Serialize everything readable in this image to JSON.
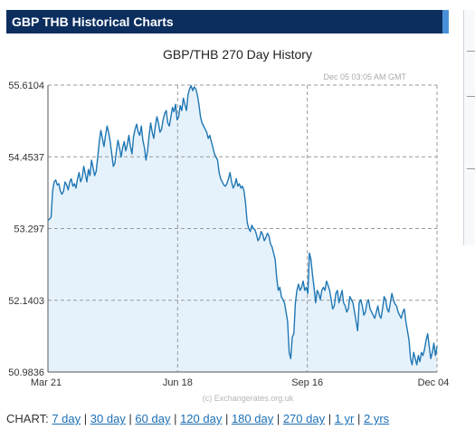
{
  "header": {
    "title": "GBP THB Historical Charts"
  },
  "chart_data": {
    "type": "area",
    "title": "GBP/THB  270 Day History",
    "timestamp": "Dec 05  03:05 AM GMT",
    "credit": "(c) Exchangerates.org.uk",
    "x_tick_labels": [
      "Mar 21",
      "Jun 18",
      "Sep 16",
      "Dec 04"
    ],
    "y_tick_labels": [
      "55.6104",
      "54.4537",
      "53.297",
      "52.1403",
      "50.9836"
    ],
    "ylim": [
      50.9836,
      55.6104
    ],
    "grid": true,
    "line_color": "#1f77b4",
    "fill_color": "#e6f2fb",
    "n_days": 270,
    "values": [
      53.43,
      53.45,
      53.48,
      53.9,
      54.05,
      54.08,
      54.0,
      54.02,
      53.9,
      53.85,
      53.9,
      54.05,
      54.0,
      53.92,
      54.05,
      54.1,
      53.98,
      54.02,
      53.95,
      54.1,
      54.2,
      54.05,
      54.12,
      54.3,
      54.18,
      54.05,
      54.25,
      54.15,
      54.4,
      54.28,
      54.15,
      54.22,
      54.45,
      54.7,
      54.88,
      54.75,
      54.62,
      54.8,
      54.95,
      54.85,
      54.7,
      54.5,
      54.3,
      54.35,
      54.55,
      54.72,
      54.6,
      54.45,
      54.6,
      54.7,
      54.55,
      54.65,
      54.8,
      54.62,
      54.5,
      54.78,
      54.9,
      54.98,
      54.85,
      54.8,
      54.95,
      54.72,
      54.6,
      54.4,
      54.55,
      54.8,
      55.0,
      54.85,
      54.75,
      54.95,
      55.1,
      55.0,
      54.85,
      54.9,
      55.05,
      55.15,
      55.2,
      55.0,
      54.95,
      55.1,
      55.25,
      55.18,
      55.3,
      55.05,
      55.1,
      55.28,
      55.2,
      55.4,
      55.3,
      55.2,
      55.45,
      55.55,
      55.6,
      55.52,
      55.58,
      55.55,
      55.45,
      55.3,
      55.1,
      55.0,
      54.95,
      54.9,
      54.85,
      54.75,
      54.8,
      54.7,
      54.6,
      54.5,
      54.45,
      54.4,
      54.2,
      54.1,
      54.05,
      54.0,
      53.98,
      54.02,
      54.1,
      54.2,
      54.05,
      53.95,
      54.0,
      54.1,
      53.98,
      54.02,
      53.95,
      53.98,
      53.9,
      53.7,
      53.4,
      53.3,
      53.25,
      53.35,
      53.3,
      53.28,
      53.2,
      53.1,
      53.15,
      53.25,
      53.2,
      53.1,
      53.15,
      53.22,
      53.18,
      53.05,
      53.0,
      52.9,
      52.8,
      52.5,
      52.3,
      52.35,
      52.2,
      52.15,
      52.1,
      51.95,
      51.8,
      51.3,
      51.2,
      51.55,
      51.6,
      52.1,
      52.3,
      52.4,
      52.3,
      52.35,
      52.45,
      52.3,
      52.35,
      52.25,
      52.9,
      52.8,
      52.55,
      52.35,
      52.1,
      52.3,
      52.25,
      52.15,
      52.3,
      52.35,
      52.3,
      52.45,
      52.38,
      52.3,
      52.15,
      52.0,
      52.05,
      52.25,
      52.3,
      52.1,
      52.2,
      52.3,
      52.1,
      52.05,
      51.95,
      52.0,
      52.2,
      52.15,
      52.1,
      51.95,
      51.8,
      51.65,
      52.1,
      52.15,
      52.05,
      51.9,
      51.95,
      52.1,
      52.15,
      52.0,
      51.95,
      51.9,
      51.85,
      51.95,
      52.05,
      51.9,
      51.85,
      52.0,
      52.2,
      52.15,
      52.0,
      51.95,
      52.1,
      52.25,
      52.15,
      52.08,
      52.05,
      51.95,
      51.9,
      51.85,
      51.95,
      52.0,
      51.8,
      51.65,
      51.5,
      51.2,
      51.1,
      51.3,
      51.2,
      51.1,
      51.25,
      51.15,
      51.3,
      51.25,
      51.35,
      51.5,
      51.6,
      51.4,
      51.2,
      51.3,
      51.45,
      51.25,
      51.4
    ]
  },
  "footer": {
    "prefix": "CHART:",
    "links": [
      "7 day",
      "30 day",
      "60 day",
      "120 day",
      "180 day",
      "270 day",
      "1 yr",
      "2 yrs"
    ]
  }
}
